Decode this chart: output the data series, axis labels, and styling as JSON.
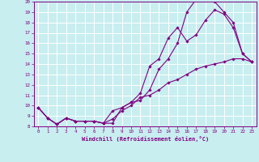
{
  "xlabel": "Windchill (Refroidissement éolien,°C)",
  "bg_color": "#c8eef0",
  "grid_color": "#ffffff",
  "line_color": "#800080",
  "spine_color": "#800080",
  "xlim": [
    -0.5,
    23.5
  ],
  "ylim": [
    8,
    20
  ],
  "yticks": [
    8,
    9,
    10,
    11,
    12,
    13,
    14,
    15,
    16,
    17,
    18,
    19,
    20
  ],
  "xticks": [
    0,
    1,
    2,
    3,
    4,
    5,
    6,
    7,
    8,
    9,
    10,
    11,
    12,
    13,
    14,
    15,
    16,
    17,
    18,
    19,
    20,
    21,
    22,
    23
  ],
  "line1_x": [
    0,
    1,
    2,
    3,
    4,
    5,
    6,
    7,
    8,
    9,
    10,
    11,
    12,
    13,
    14,
    15,
    16,
    17,
    18,
    19,
    20,
    21,
    22,
    23
  ],
  "line1_y": [
    9.8,
    8.8,
    8.2,
    8.8,
    8.5,
    8.5,
    8.5,
    8.3,
    8.3,
    9.8,
    10.3,
    10.5,
    11.5,
    13.5,
    14.5,
    16.0,
    19.0,
    20.2,
    20.2,
    20.0,
    19.0,
    18.0,
    15.0,
    14.2
  ],
  "line2_x": [
    0,
    1,
    2,
    3,
    4,
    5,
    6,
    7,
    8,
    9,
    10,
    11,
    12,
    13,
    14,
    15,
    16,
    17,
    18,
    19,
    20,
    21,
    22,
    23
  ],
  "line2_y": [
    9.8,
    8.8,
    8.2,
    8.8,
    8.5,
    8.5,
    8.5,
    8.3,
    9.5,
    9.8,
    10.3,
    11.2,
    13.8,
    14.5,
    16.5,
    17.5,
    16.2,
    16.8,
    18.2,
    19.2,
    18.8,
    17.5,
    15.0,
    14.2
  ],
  "line3_x": [
    0,
    1,
    2,
    3,
    4,
    5,
    6,
    7,
    8,
    9,
    10,
    11,
    12,
    13,
    14,
    15,
    16,
    17,
    18,
    19,
    20,
    21,
    22,
    23
  ],
  "line3_y": [
    9.8,
    8.8,
    8.2,
    8.8,
    8.5,
    8.5,
    8.5,
    8.3,
    8.7,
    9.5,
    10.0,
    10.8,
    11.0,
    11.5,
    12.2,
    12.5,
    13.0,
    13.5,
    13.8,
    14.0,
    14.2,
    14.5,
    14.5,
    14.2
  ]
}
